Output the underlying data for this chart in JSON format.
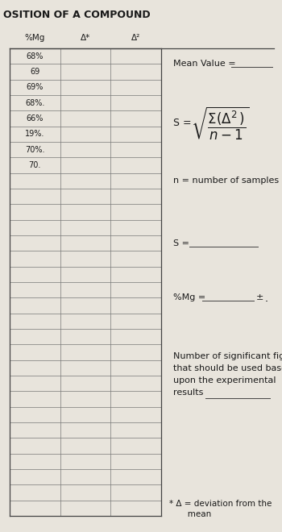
{
  "title": "OSITION OF A COMPOUND",
  "bg_color": "#cfc9c0",
  "paper_color": "#e8e4dc",
  "col_headers": [
    "%Mg",
    "Δ*",
    "Δ²"
  ],
  "data_values": [
    "68%",
    "69",
    "69%",
    "68%.",
    "66%",
    "19%.",
    "70%.",
    "70."
  ],
  "num_rows": 30,
  "num_cols": 3,
  "font_color": "#1a1a1a",
  "line_color": "#444444",
  "grid_color": "#777777",
  "mean_value_label": "Mean Value = ",
  "n_label": "n = number of samples",
  "sig_fig_lines": [
    "Number of significant figures",
    "that should be used based",
    "upon the experimental",
    "results "
  ],
  "footnote_line1": "* Δ = deviation from the",
  "footnote_line2": "       mean"
}
